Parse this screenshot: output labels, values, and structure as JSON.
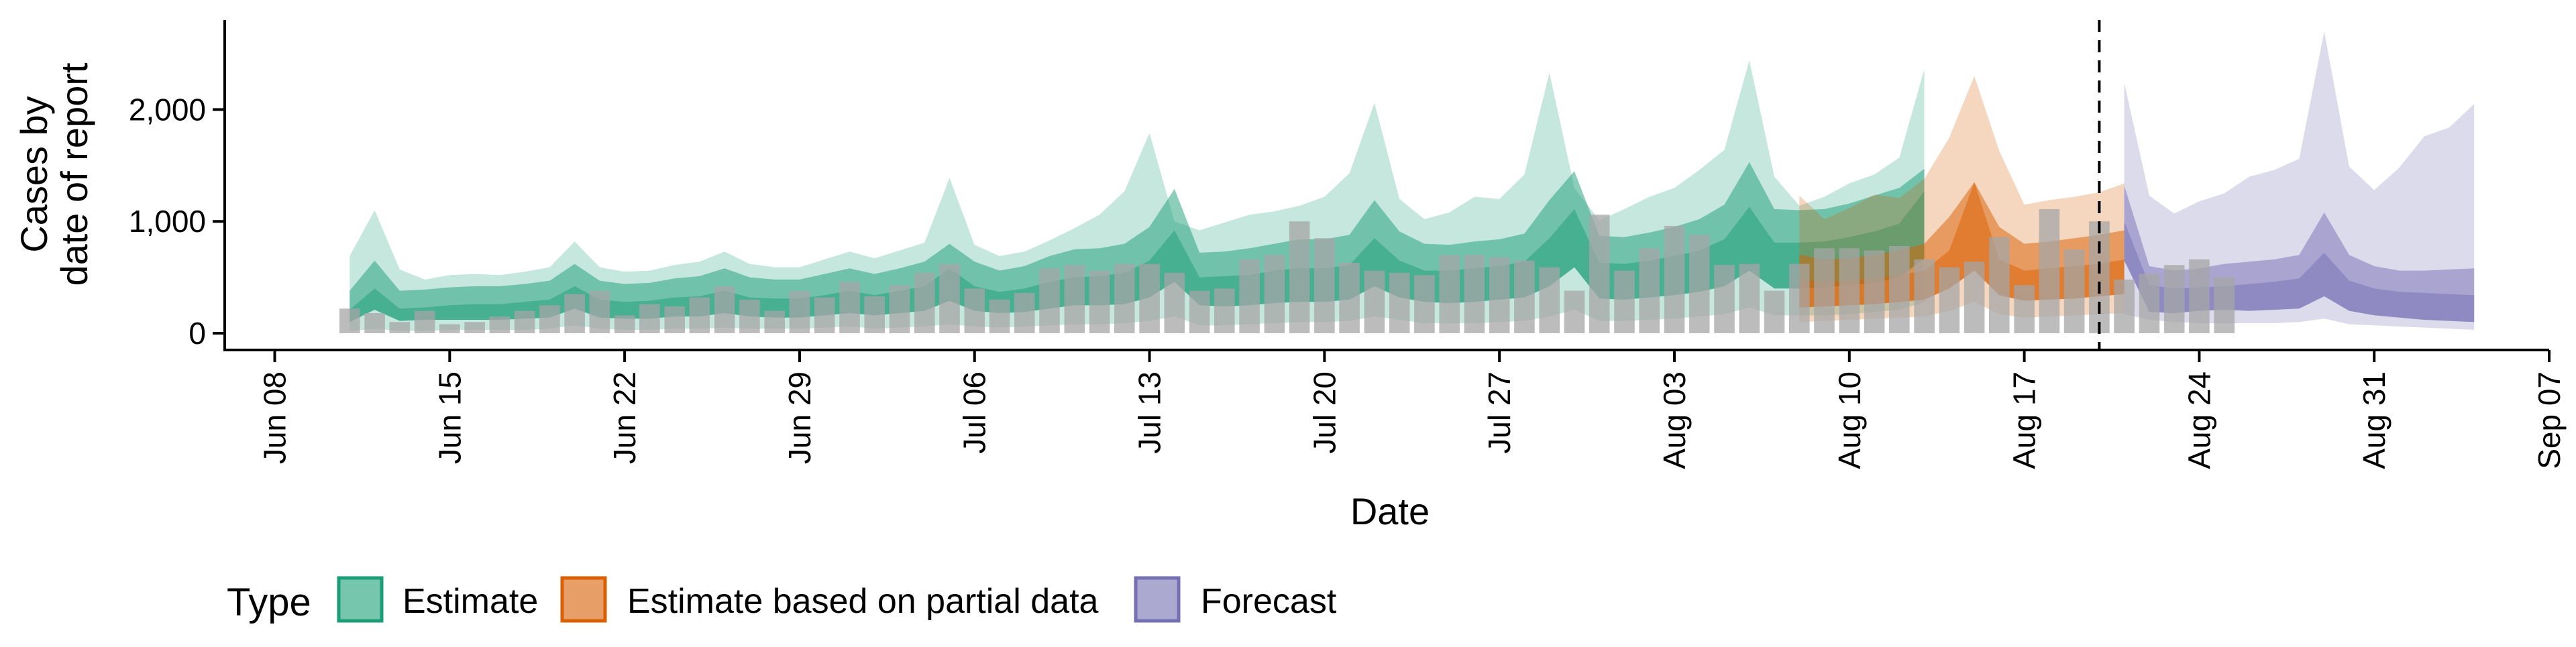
{
  "chart_data": {
    "type": "area",
    "xlabel": "Date",
    "ylabel_lines": [
      "Cases by",
      "date of report"
    ],
    "x_tick_labels": [
      "Jun 08",
      "Jun 15",
      "Jun 22",
      "Jun 29",
      "Jul 06",
      "Jul 13",
      "Jul 20",
      "Jul 27",
      "Aug 03",
      "Aug 10",
      "Aug 17",
      "Aug 24",
      "Aug 31",
      "Sep 07"
    ],
    "x_tick_dates": [
      "2020-06-08",
      "2020-06-15",
      "2020-06-22",
      "2020-06-29",
      "2020-07-06",
      "2020-07-13",
      "2020-07-20",
      "2020-07-27",
      "2020-08-03",
      "2020-08-10",
      "2020-08-17",
      "2020-08-24",
      "2020-08-31",
      "2020-09-07"
    ],
    "xlim": [
      "2020-06-06",
      "2020-09-07"
    ],
    "y_ticks": [
      0,
      1000,
      2000
    ],
    "y_tick_labels": [
      "0",
      "1,000",
      "2,000"
    ],
    "ylim": [
      -150,
      2800
    ],
    "forecast_line_date": "2020-08-20",
    "legend": {
      "title": "Type",
      "placement": "bottom",
      "items": [
        {
          "key": "estimate",
          "label": "Estimate",
          "color": "#1B9E77"
        },
        {
          "key": "partial",
          "label": "Estimate based on partial data",
          "color": "#D95F02"
        },
        {
          "key": "forecast",
          "label": "Forecast",
          "color": "#7570B3"
        }
      ]
    },
    "bars": {
      "color": "#A6A6A6",
      "start_date": "2020-06-11",
      "values": [
        220,
        180,
        100,
        200,
        80,
        100,
        150,
        200,
        250,
        350,
        380,
        160,
        260,
        240,
        320,
        420,
        300,
        200,
        380,
        320,
        460,
        330,
        430,
        540,
        620,
        400,
        300,
        360,
        580,
        610,
        560,
        620,
        620,
        540,
        380,
        400,
        660,
        700,
        1000,
        850,
        630,
        560,
        540,
        520,
        700,
        700,
        680,
        650,
        590,
        380,
        1060,
        560,
        760,
        960,
        880,
        610,
        620,
        380,
        620,
        760,
        760,
        740,
        780,
        660,
        590,
        640,
        860,
        430,
        1110,
        750,
        1000,
        480,
        530,
        610,
        660,
        500
      ]
    },
    "series": [
      {
        "name": "Estimate",
        "type": "estimate",
        "start_date": "2020-06-11",
        "outer_low": [
          20,
          40,
          20,
          20,
          30,
          30,
          30,
          30,
          40,
          70,
          40,
          30,
          30,
          40,
          40,
          50,
          40,
          40,
          40,
          50,
          60,
          40,
          50,
          60,
          80,
          60,
          50,
          60,
          70,
          80,
          80,
          90,
          110,
          150,
          70,
          70,
          80,
          90,
          100,
          100,
          110,
          150,
          120,
          90,
          90,
          90,
          100,
          110,
          150,
          210,
          110,
          110,
          120,
          130,
          150,
          170,
          230,
          160,
          160,
          160,
          170,
          190,
          210,
          280
        ],
        "inner_low": [
          100,
          210,
          110,
          120,
          120,
          120,
          120,
          130,
          140,
          220,
          140,
          130,
          130,
          150,
          150,
          180,
          150,
          140,
          140,
          160,
          180,
          160,
          180,
          200,
          290,
          200,
          180,
          190,
          220,
          250,
          250,
          260,
          320,
          460,
          250,
          240,
          250,
          270,
          280,
          280,
          300,
          420,
          320,
          280,
          270,
          280,
          300,
          320,
          420,
          590,
          310,
          300,
          320,
          340,
          370,
          420,
          560,
          400,
          400,
          410,
          430,
          450,
          500,
          670
        ],
        "median": [
          210,
          400,
          220,
          230,
          250,
          260,
          260,
          280,
          300,
          420,
          300,
          280,
          290,
          320,
          330,
          380,
          320,
          310,
          310,
          340,
          380,
          340,
          380,
          420,
          580,
          420,
          370,
          400,
          460,
          500,
          510,
          540,
          650,
          920,
          500,
          510,
          520,
          560,
          580,
          580,
          610,
          850,
          650,
          560,
          560,
          580,
          600,
          640,
          850,
          1110,
          630,
          620,
          650,
          690,
          740,
          840,
          1130,
          810,
          810,
          820,
          860,
          910,
          980,
          1270
        ],
        "inner_high": [
          380,
          650,
          380,
          390,
          410,
          420,
          420,
          440,
          470,
          620,
          470,
          440,
          450,
          490,
          510,
          580,
          500,
          480,
          480,
          530,
          580,
          530,
          580,
          640,
          800,
          640,
          560,
          600,
          690,
          750,
          760,
          800,
          950,
          1290,
          720,
          730,
          760,
          800,
          840,
          840,
          880,
          1190,
          910,
          800,
          790,
          820,
          840,
          890,
          1190,
          1450,
          870,
          860,
          900,
          950,
          1020,
          1150,
          1530,
          1110,
          1100,
          1110,
          1160,
          1230,
          1300,
          1470
        ],
        "outer_high": [
          690,
          1100,
          570,
          480,
          520,
          530,
          520,
          550,
          590,
          820,
          590,
          550,
          560,
          610,
          640,
          730,
          620,
          590,
          590,
          660,
          730,
          670,
          740,
          810,
          1390,
          790,
          690,
          730,
          830,
          940,
          1060,
          1270,
          1790,
          1000,
          920,
          990,
          1060,
          1090,
          1140,
          1220,
          1430,
          2060,
          1200,
          1020,
          1080,
          1220,
          1200,
          1420,
          2330,
          1300,
          1010,
          1110,
          1220,
          1300,
          1460,
          1640,
          2440,
          1400,
          1140,
          1220,
          1340,
          1420,
          1570,
          2360
        ]
      },
      {
        "name": "Estimate based on partial data",
        "type": "partial",
        "start_date": "2020-08-08",
        "outer_low": [
          100,
          110,
          120,
          130,
          140,
          150,
          200,
          280,
          170,
          140,
          150,
          160,
          170,
          180
        ],
        "inner_low": [
          230,
          240,
          250,
          260,
          280,
          300,
          400,
          560,
          340,
          290,
          300,
          310,
          330,
          350
        ],
        "median": [
          480,
          460,
          470,
          490,
          520,
          560,
          740,
          1350,
          660,
          560,
          580,
          600,
          620,
          660
        ],
        "inner_high": [
          700,
          660,
          670,
          700,
          740,
          800,
          1040,
          1350,
          950,
          800,
          820,
          850,
          880,
          920
        ],
        "outer_high": [
          1230,
          1020,
          1120,
          1240,
          1210,
          1380,
          1750,
          2300,
          1630,
          1150,
          1190,
          1220,
          1260,
          1340
        ]
      },
      {
        "name": "Forecast",
        "type": "forecast",
        "start_date": "2020-08-21",
        "outer_low": [
          170,
          120,
          100,
          90,
          90,
          90,
          90,
          100,
          130,
          80,
          70,
          60,
          50,
          40,
          30
        ],
        "inner_low": [
          650,
          190,
          180,
          200,
          210,
          200,
          210,
          220,
          330,
          200,
          160,
          140,
          120,
          110,
          100
        ],
        "median": [
          1000,
          430,
          400,
          410,
          420,
          440,
          460,
          490,
          720,
          470,
          400,
          370,
          360,
          350,
          340
        ],
        "inner_high": [
          1320,
          600,
          560,
          580,
          620,
          640,
          660,
          700,
          1080,
          700,
          600,
          560,
          560,
          570,
          580
        ],
        "outer_high": [
          2240,
          1230,
          1070,
          1180,
          1250,
          1400,
          1460,
          1560,
          2700,
          1490,
          1280,
          1480,
          1760,
          1840,
          2050
        ]
      }
    ]
  }
}
